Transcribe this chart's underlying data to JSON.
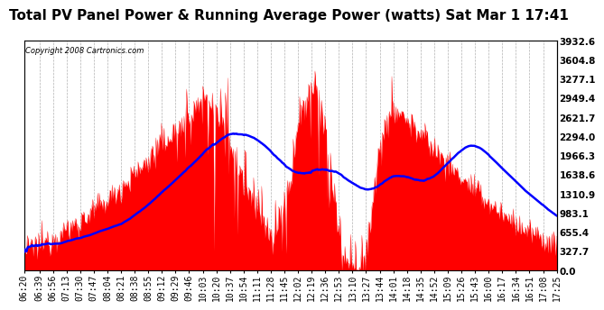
{
  "title": "Total PV Panel Power & Running Average Power (watts) Sat Mar 1 17:41",
  "copyright": "Copyright 2008 Cartronics.com",
  "ymax": 3932.6,
  "yticks": [
    0.0,
    327.7,
    655.4,
    983.1,
    1310.9,
    1638.6,
    1966.3,
    2294.0,
    2621.7,
    2949.4,
    3277.1,
    3604.8,
    3932.6
  ],
  "bg_color": "#ffffff",
  "plot_bg_color": "#ffffff",
  "grid_color": "#aaaaaa",
  "bar_color": "#ff0000",
  "line_color": "#0000ff",
  "title_fontsize": 11,
  "copyright_fontsize": 6,
  "tick_fontsize": 7,
  "xtick_labels": [
    "06:20",
    "06:39",
    "06:56",
    "07:13",
    "07:30",
    "07:47",
    "08:04",
    "08:21",
    "08:38",
    "08:55",
    "09:12",
    "09:29",
    "09:46",
    "10:03",
    "10:20",
    "10:37",
    "10:54",
    "11:11",
    "11:28",
    "11:45",
    "12:02",
    "12:19",
    "12:36",
    "12:53",
    "13:10",
    "13:27",
    "13:44",
    "14:01",
    "14:18",
    "14:35",
    "14:52",
    "15:09",
    "15:26",
    "15:43",
    "16:00",
    "16:17",
    "16:34",
    "16:51",
    "17:08",
    "17:25"
  ]
}
